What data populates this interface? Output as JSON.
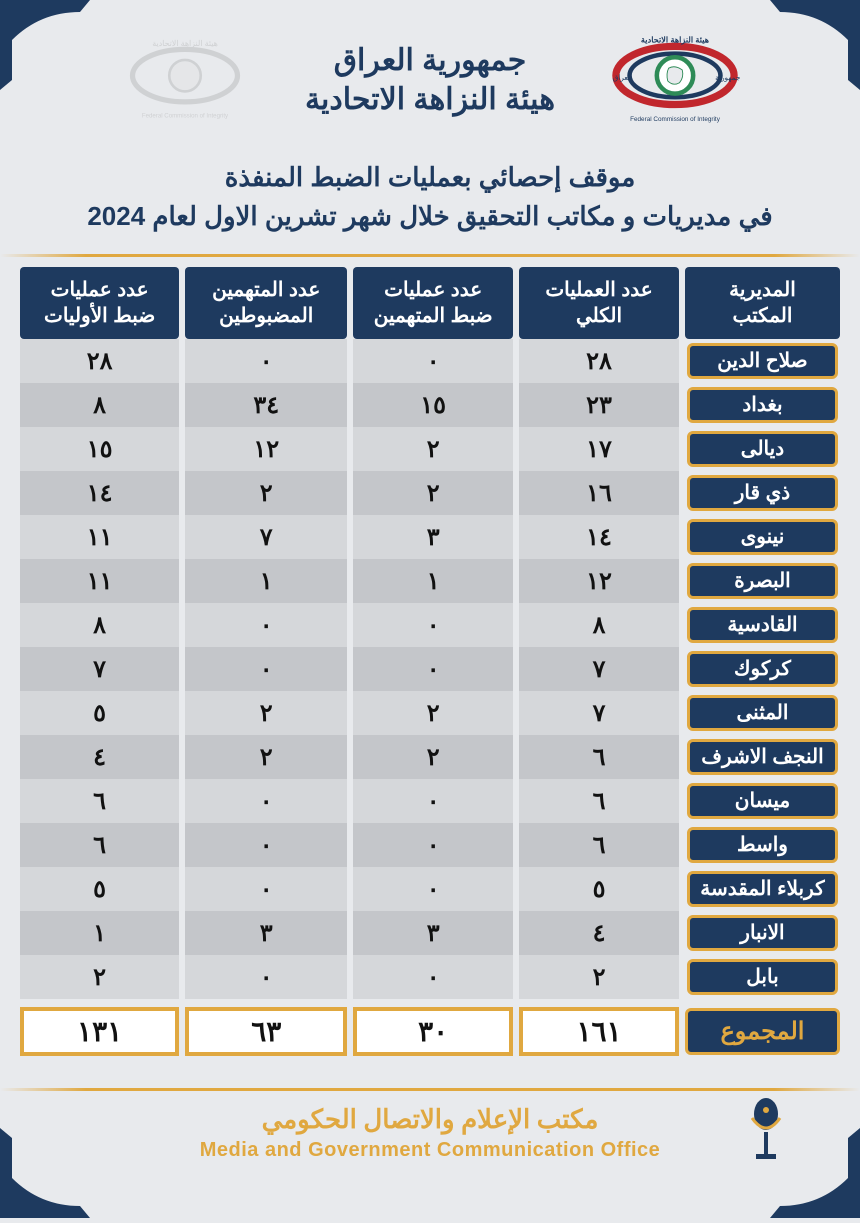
{
  "colors": {
    "primary": "#1e3a5f",
    "accent": "#e0a840",
    "bg": "#e8eaed",
    "row_even": "#d5d7da",
    "row_odd": "#c4c6ca",
    "text": "#111111",
    "white": "#ffffff"
  },
  "header": {
    "country": "جمهورية العراق",
    "organization": "هيئة النزاهة الاتحادية",
    "logo_text_ar": "هيئة النزاهة الاتحادية",
    "logo_text_en": "Federal Commission of Integrity"
  },
  "report_title": {
    "line1": "موقف إحصائي بعمليات الضبط المنفذة",
    "line2": "في مديريات و مكاتب التحقيق خلال شهر تشرين الاول لعام 2024"
  },
  "table": {
    "columns": [
      {
        "key": "office",
        "label_l1": "المديرية",
        "label_l2": "المكتب"
      },
      {
        "key": "total_ops",
        "label_l1": "عدد العمليات",
        "label_l2": "الكلي"
      },
      {
        "key": "accused_ops",
        "label_l1": "عدد عمليات",
        "label_l2": "ضبط المتهمين"
      },
      {
        "key": "accused_caught",
        "label_l1": "عدد المتهمين",
        "label_l2": "المضبوطين"
      },
      {
        "key": "evidence_ops",
        "label_l1": "عدد عمليات",
        "label_l2": "ضبط الأوليات"
      }
    ],
    "rows": [
      {
        "office": "صلاح الدين",
        "total_ops": "٢٨",
        "accused_ops": "٠",
        "accused_caught": "٠",
        "evidence_ops": "٢٨"
      },
      {
        "office": "بغداد",
        "total_ops": "٢٣",
        "accused_ops": "١٥",
        "accused_caught": "٣٤",
        "evidence_ops": "٨"
      },
      {
        "office": "ديالى",
        "total_ops": "١٧",
        "accused_ops": "٢",
        "accused_caught": "١٢",
        "evidence_ops": "١٥"
      },
      {
        "office": "ذي قار",
        "total_ops": "١٦",
        "accused_ops": "٢",
        "accused_caught": "٢",
        "evidence_ops": "١٤"
      },
      {
        "office": "نينوى",
        "total_ops": "١٤",
        "accused_ops": "٣",
        "accused_caught": "٧",
        "evidence_ops": "١١"
      },
      {
        "office": "البصرة",
        "total_ops": "١٢",
        "accused_ops": "١",
        "accused_caught": "١",
        "evidence_ops": "١١"
      },
      {
        "office": "القادسية",
        "total_ops": "٨",
        "accused_ops": "٠",
        "accused_caught": "٠",
        "evidence_ops": "٨"
      },
      {
        "office": "كركوك",
        "total_ops": "٧",
        "accused_ops": "٠",
        "accused_caught": "٠",
        "evidence_ops": "٧"
      },
      {
        "office": "المثنى",
        "total_ops": "٧",
        "accused_ops": "٢",
        "accused_caught": "٢",
        "evidence_ops": "٥"
      },
      {
        "office": "النجف الاشرف",
        "total_ops": "٦",
        "accused_ops": "٢",
        "accused_caught": "٢",
        "evidence_ops": "٤"
      },
      {
        "office": "ميسان",
        "total_ops": "٦",
        "accused_ops": "٠",
        "accused_caught": "٠",
        "evidence_ops": "٦"
      },
      {
        "office": "واسط",
        "total_ops": "٦",
        "accused_ops": "٠",
        "accused_caught": "٠",
        "evidence_ops": "٦"
      },
      {
        "office": "كربلاء المقدسة",
        "total_ops": "٥",
        "accused_ops": "٠",
        "accused_caught": "٠",
        "evidence_ops": "٥"
      },
      {
        "office": "الانبار",
        "total_ops": "٤",
        "accused_ops": "٣",
        "accused_caught": "٣",
        "evidence_ops": "١"
      },
      {
        "office": "بابل",
        "total_ops": "٢",
        "accused_ops": "٠",
        "accused_caught": "٠",
        "evidence_ops": "٢"
      }
    ],
    "totals": {
      "label": "المجموع",
      "total_ops": "١٦١",
      "accused_ops": "٣٠",
      "accused_caught": "٦٣",
      "evidence_ops": "١٣١"
    }
  },
  "footer": {
    "ar": "مكتب الإعلام والاتصال الحكومي",
    "en": "Media and Government Communication Office"
  }
}
